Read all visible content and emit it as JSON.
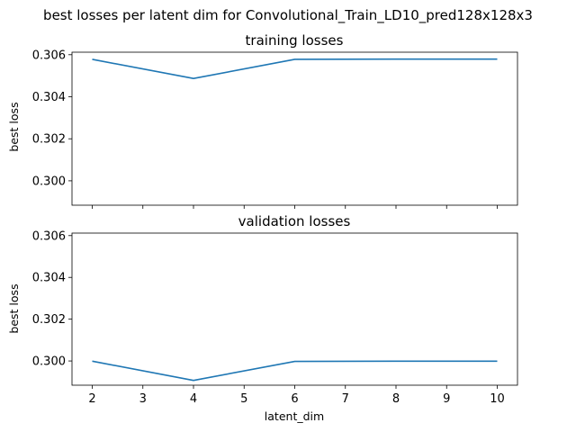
{
  "chart_data": {
    "type": "line",
    "suptitle": "best losses per latent dim for Convolutional_Train_LD10_pred128x128x3",
    "xlabel": "latent_dim",
    "x_ticks": [
      2,
      3,
      4,
      5,
      6,
      7,
      8,
      9,
      10
    ],
    "xlim": [
      1.6,
      10.4
    ],
    "shared_x": true,
    "line_color": "#1f77b4",
    "grid": false,
    "legend": "none",
    "panels": [
      {
        "title": "training losses",
        "ylabel": "best loss",
        "ylim": [
          0.29884,
          0.30612
        ],
        "y_ticks": [
          0.3,
          0.302,
          0.304,
          0.306
        ],
        "y_tick_labels": [
          "0.300",
          "0.302",
          "0.304",
          "0.306"
        ],
        "series": [
          {
            "x": [
              2,
              4,
              6,
              8,
              10
            ],
            "y": [
              0.30578,
              0.30487,
              0.30578,
              0.30579,
              0.30579
            ]
          }
        ]
      },
      {
        "title": "validation losses",
        "ylabel": "best loss",
        "ylim": [
          0.29884,
          0.30612
        ],
        "y_ticks": [
          0.3,
          0.302,
          0.304,
          0.306
        ],
        "y_tick_labels": [
          "0.300",
          "0.302",
          "0.304",
          "0.306"
        ],
        "series": [
          {
            "x": [
              2,
              4,
              6,
              8,
              10
            ],
            "y": [
              0.29999,
              0.29907,
              0.29998,
              0.29999,
              0.29999
            ]
          }
        ]
      }
    ]
  }
}
